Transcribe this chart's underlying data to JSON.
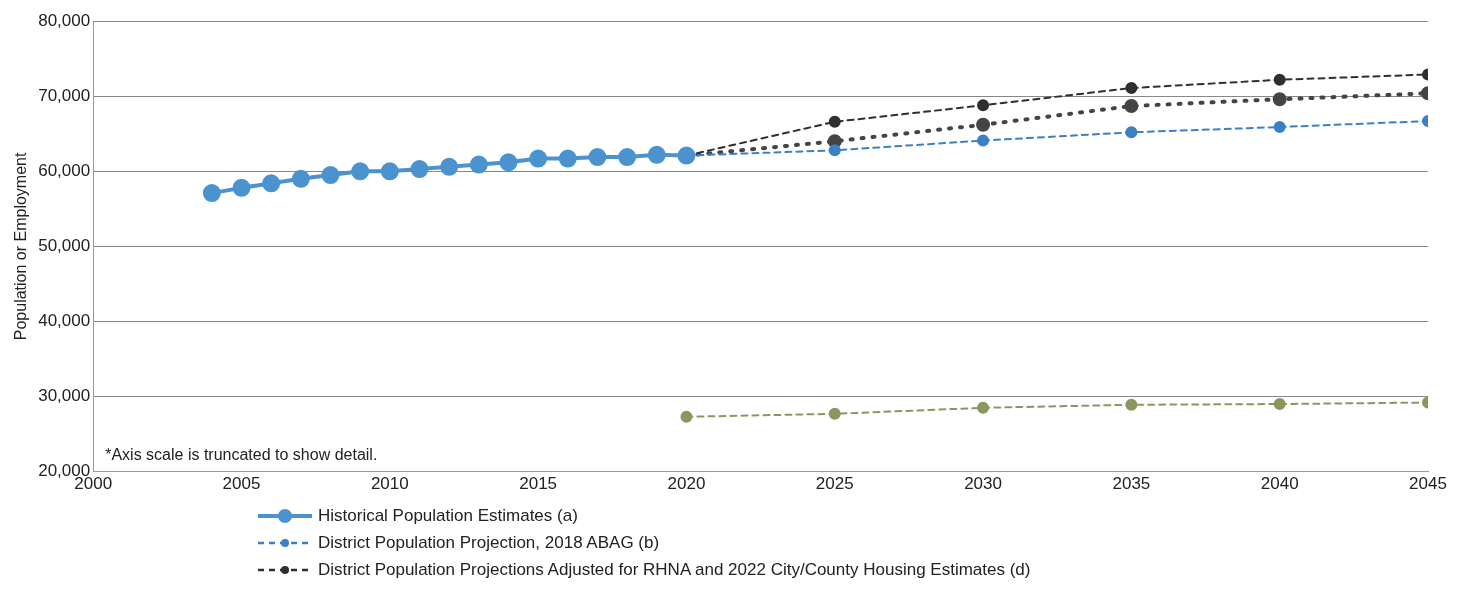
{
  "chart_data": {
    "type": "line",
    "ylabel": "Population or Employment",
    "annotations": [
      "*Axis scale is truncated to show detail."
    ],
    "xlim": [
      2000,
      2045
    ],
    "xticks": [
      2000,
      2005,
      2010,
      2015,
      2020,
      2025,
      2030,
      2035,
      2040,
      2045
    ],
    "ylim": [
      20000,
      80000
    ],
    "yticks": [
      {
        "value": 20000,
        "label": "20,000"
      },
      {
        "value": 30000,
        "label": "30,000"
      },
      {
        "value": 40000,
        "label": "40,000"
      },
      {
        "value": 50000,
        "label": "50,000"
      },
      {
        "value": 60000,
        "label": "60,000"
      },
      {
        "value": 70000,
        "label": "70,000"
      },
      {
        "value": 80000,
        "label": "80,000"
      }
    ],
    "grid": "y",
    "legend": "bottom",
    "marker": "circle",
    "series": [
      {
        "name": "Historical Population Estimates (a)",
        "color": "#4a93cf",
        "line_style": "solid",
        "x": [
          2004,
          2005,
          2006,
          2007,
          2008,
          2009,
          2010,
          2011,
          2012,
          2013,
          2014,
          2015,
          2016,
          2017,
          2018,
          2019,
          2020
        ],
        "values": [
          57100,
          57800,
          58400,
          59000,
          59500,
          60000,
          60000,
          60300,
          60600,
          60900,
          61200,
          61700,
          61700,
          61900,
          61900,
          62200,
          62100
        ]
      },
      {
        "name": "District Population Projection, 2018 ABAG (b)",
        "color": "#3b7fc4",
        "line_style": "dashed",
        "x": [
          2020,
          2025,
          2030,
          2035,
          2040,
          2045
        ],
        "values": [
          62100,
          62800,
          64100,
          65200,
          65900,
          66700
        ]
      },
      {
        "name": "District Population Projections Adjusted for RHNA and 2022 City/County Housing Estimates (d)",
        "color": "#2f2f2f",
        "line_style": "dashed",
        "x": [
          2020,
          2025,
          2030,
          2035,
          2040,
          2045
        ],
        "values": [
          62100,
          66600,
          68800,
          71100,
          72200,
          72900
        ]
      },
      {
        "color": "#444444",
        "line_style": "dotted",
        "x": [
          2020,
          2025,
          2030,
          2035,
          2040,
          2045
        ],
        "values": [
          62100,
          64000,
          66200,
          68700,
          69600,
          70400
        ]
      },
      {
        "color": "#8a9860",
        "line_style": "dashed",
        "x": [
          2020,
          2025,
          2030,
          2035,
          2040,
          2045
        ],
        "values": [
          27300,
          27700,
          28500,
          28900,
          29000,
          29200
        ]
      }
    ]
  }
}
